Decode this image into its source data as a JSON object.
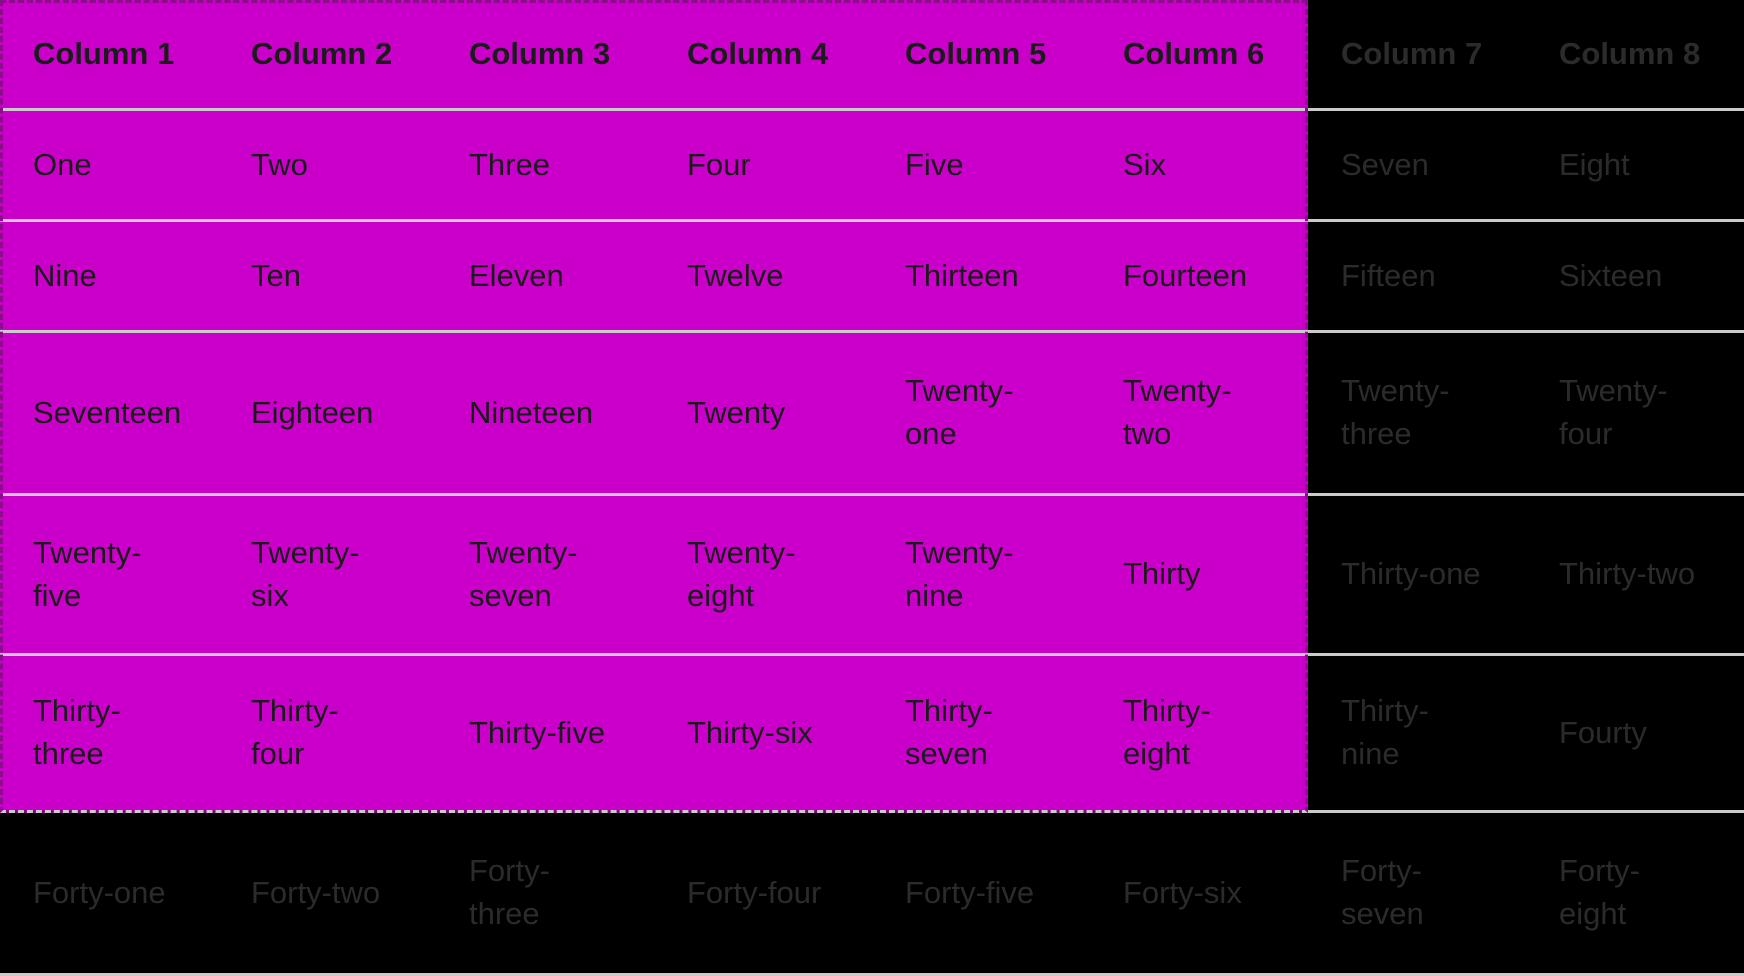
{
  "table": {
    "headers": [
      "Column 1",
      "Column 2",
      "Column 3",
      "Column 4",
      "Column 5",
      "Column 6",
      "Column 7",
      "Column 8"
    ],
    "rows": [
      [
        "One",
        "Two",
        "Three",
        "Four",
        "Five",
        "Six",
        "Seven",
        "Eight"
      ],
      [
        "Nine",
        "Ten",
        "Eleven",
        "Twelve",
        "Thirteen",
        "Fourteen",
        "Fifteen",
        "Sixteen"
      ],
      [
        "Seventeen",
        "Eighteen",
        "Nineteen",
        "Twenty",
        "Twenty-\none",
        "Twenty-\ntwo",
        "Twenty-\nthree",
        "Twenty-\nfour"
      ],
      [
        "Twenty-\nfive",
        "Twenty-\nsix",
        "Twenty-\nseven",
        "Twenty-\neight",
        "Twenty-\nnine",
        "Thirty",
        "Thirty-one",
        "Thirty-two"
      ],
      [
        "Thirty-\nthree",
        "Thirty-\nfour",
        "Thirty-five",
        "Thirty-six",
        "Thirty-\nseven",
        "Thirty-\neight",
        "Thirty-\nnine",
        "Fourty"
      ],
      [
        "Forty-one",
        "Forty-two",
        "Forty-\nthree",
        "Forty-four",
        "Forty-five",
        "Forty-six",
        "Forty-\nseven",
        "Forty-\neight"
      ]
    ]
  },
  "selection": {
    "col_count": 6,
    "row_count_including_header": 6
  },
  "colors": {
    "background": "#000000",
    "selection_fill": "#CA00CA",
    "selection_dash_dark": "#8A0D8A",
    "selection_dash_light": "#CBCBCB",
    "selection_dash_underlay": "#7E0B7E",
    "row_divider": "#CBCBCB",
    "selected_text": "#1B1B1B",
    "dimmed_text": "#2B2B2B"
  }
}
